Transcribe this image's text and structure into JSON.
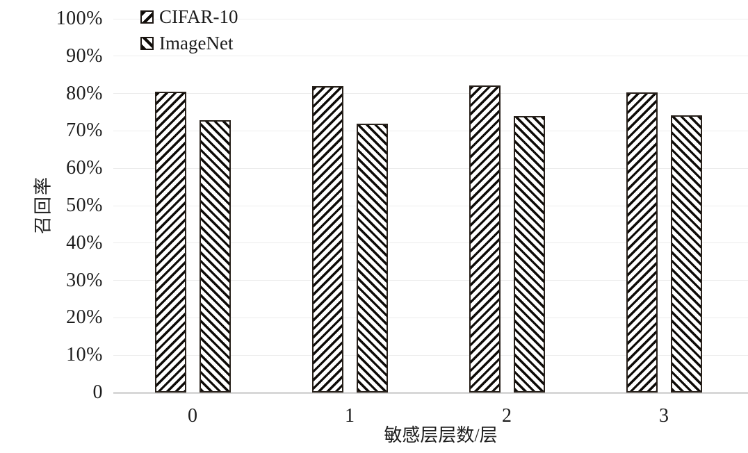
{
  "chart_data": {
    "type": "bar",
    "title": "",
    "xlabel": "敏感层层数/层",
    "ylabel": "召回率",
    "categories": [
      "0",
      "1",
      "2",
      "3"
    ],
    "series": [
      {
        "name": "CIFAR-10",
        "hatch": "forward-diagonal",
        "values": [
          80.5,
          81.9,
          82.1,
          80.3
        ]
      },
      {
        "name": "ImageNet",
        "hatch": "backward-diagonal",
        "values": [
          72.9,
          71.9,
          74.0,
          74.1
        ]
      }
    ],
    "ylim": [
      0,
      100
    ],
    "yticks": [
      {
        "value": 0,
        "label": "0"
      },
      {
        "value": 10,
        "label": "10%"
      },
      {
        "value": 20,
        "label": "20%"
      },
      {
        "value": 30,
        "label": "30%"
      },
      {
        "value": 40,
        "label": "40%"
      },
      {
        "value": 50,
        "label": "50%"
      },
      {
        "value": 60,
        "label": "60%"
      },
      {
        "value": 70,
        "label": "70%"
      },
      {
        "value": 80,
        "label": "80%"
      },
      {
        "value": 90,
        "label": "90%"
      },
      {
        "value": 100,
        "label": "100%"
      }
    ],
    "grid": "horizontal",
    "legend_position": "top-left-inside",
    "colors": {
      "hatch": "#0e0b08",
      "bar_fill": "#ffffff",
      "bar_border": "#27201a",
      "gridline": "#ececec",
      "axis_line": "#d8d8d8",
      "text": "#1c1c1c"
    }
  }
}
